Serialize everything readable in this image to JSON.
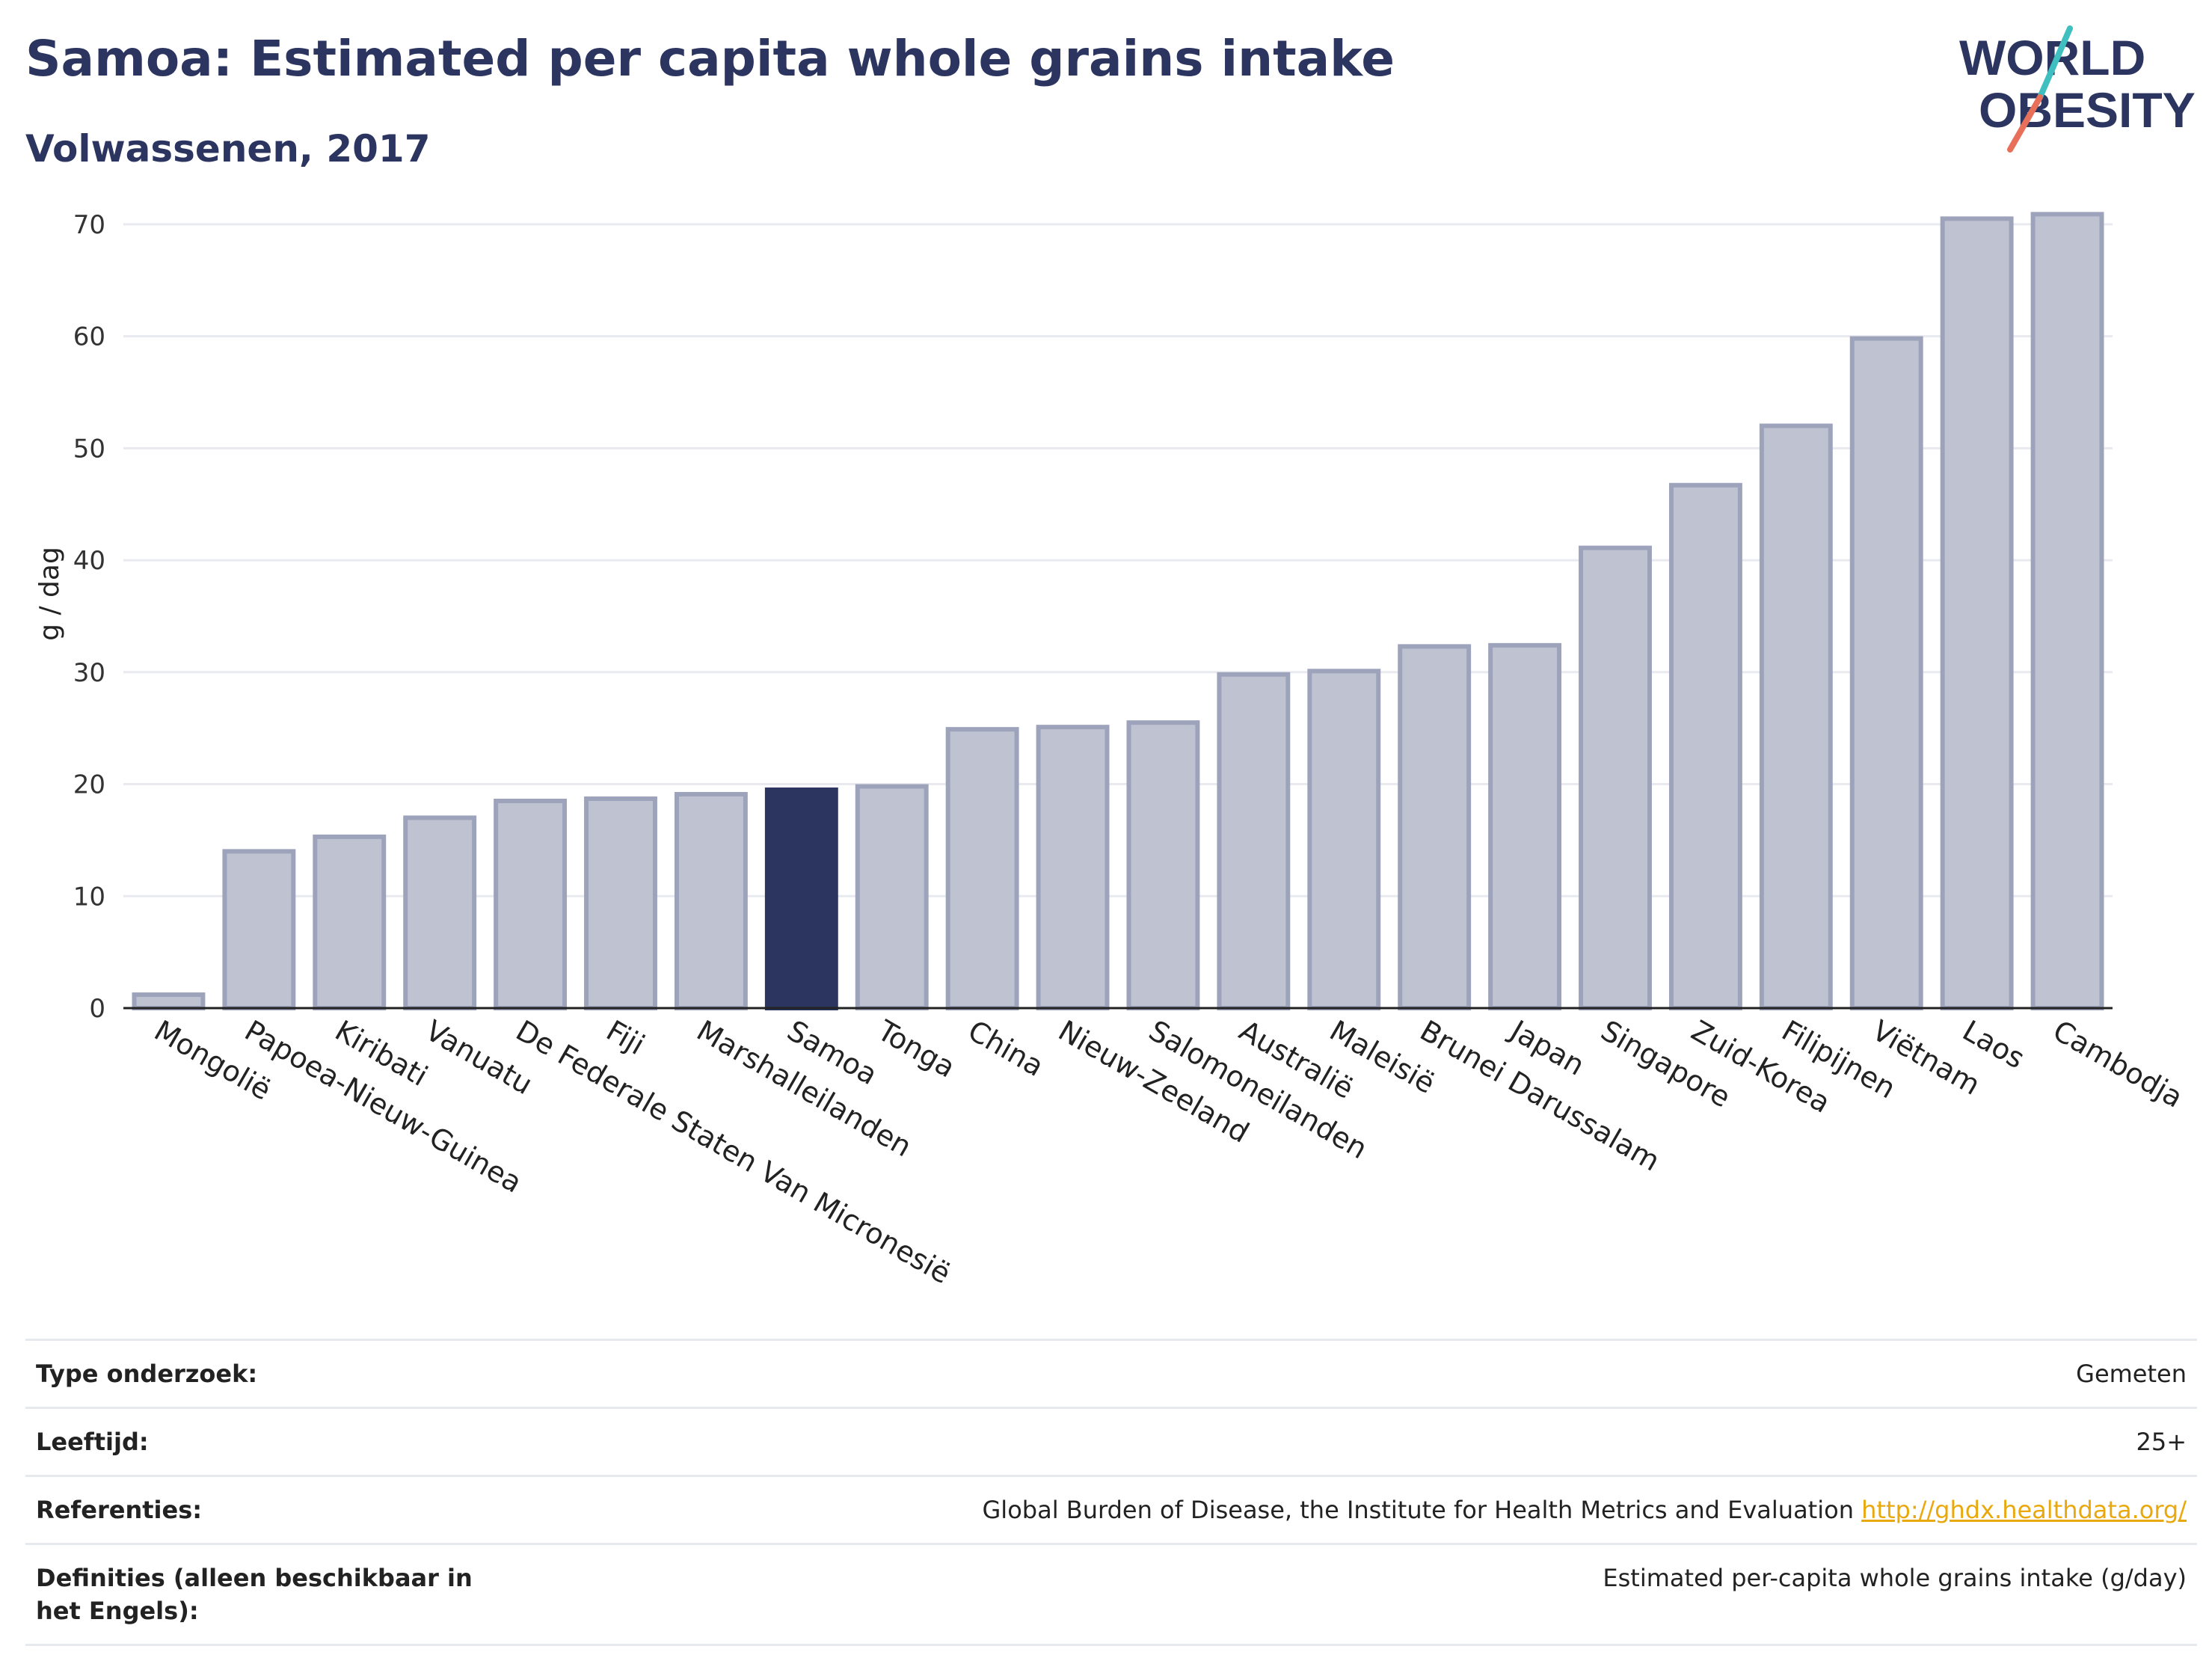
{
  "header": {
    "title": "Samoa: Estimated per capita whole grains intake",
    "subtitle": "Volwassenen, 2017"
  },
  "logo": {
    "line1": "WORLD",
    "line2": "OBESITY",
    "colors": {
      "text": "#2b3560",
      "teal": "#3fbfbf",
      "coral": "#e8705a"
    }
  },
  "chart_data": {
    "type": "bar",
    "ylabel": "g / dag",
    "ylim": [
      0,
      74
    ],
    "yticks": [
      0,
      10,
      20,
      30,
      40,
      50,
      60,
      70
    ],
    "grid": true,
    "highlight": "Samoa",
    "colors": {
      "default": "#bfc3d1",
      "default_stroke": "#9ea3bc",
      "highlight": "#2b3560"
    },
    "categories": [
      "Mongolië",
      "Papoea-Nieuw-Guinea",
      "Kiribati",
      "Vanuatu",
      "De Federale Staten Van Micronesië",
      "Fiji",
      "Marshalleilanden",
      "Samoa",
      "Tonga",
      "China",
      "Nieuw-Zeeland",
      "Salomoneilanden",
      "Australië",
      "Maleisië",
      "Brunei Darussalam",
      "Japan",
      "Singapore",
      "Zuid-Korea",
      "Filipijnen",
      "Viëtnam",
      "Laos",
      "Cambodja"
    ],
    "values": [
      1.2,
      14.0,
      15.3,
      17.0,
      18.5,
      18.7,
      19.1,
      19.5,
      19.8,
      24.9,
      25.1,
      25.5,
      29.8,
      30.1,
      32.3,
      32.4,
      41.1,
      46.7,
      52.0,
      59.8,
      70.5,
      70.9
    ]
  },
  "meta": [
    {
      "label": "Type onderzoek:",
      "value": "Gemeten"
    },
    {
      "label": "Leeftijd:",
      "value": "25+"
    },
    {
      "label": "Referenties:",
      "value": "Global Burden of Disease, the Institute for Health Metrics and Evaluation",
      "link": "http://ghdx.healthdata.org/"
    },
    {
      "label": "Definities (alleen beschikbaar in het Engels):",
      "value": "Estimated per-capita whole grains intake (g/day)"
    }
  ]
}
